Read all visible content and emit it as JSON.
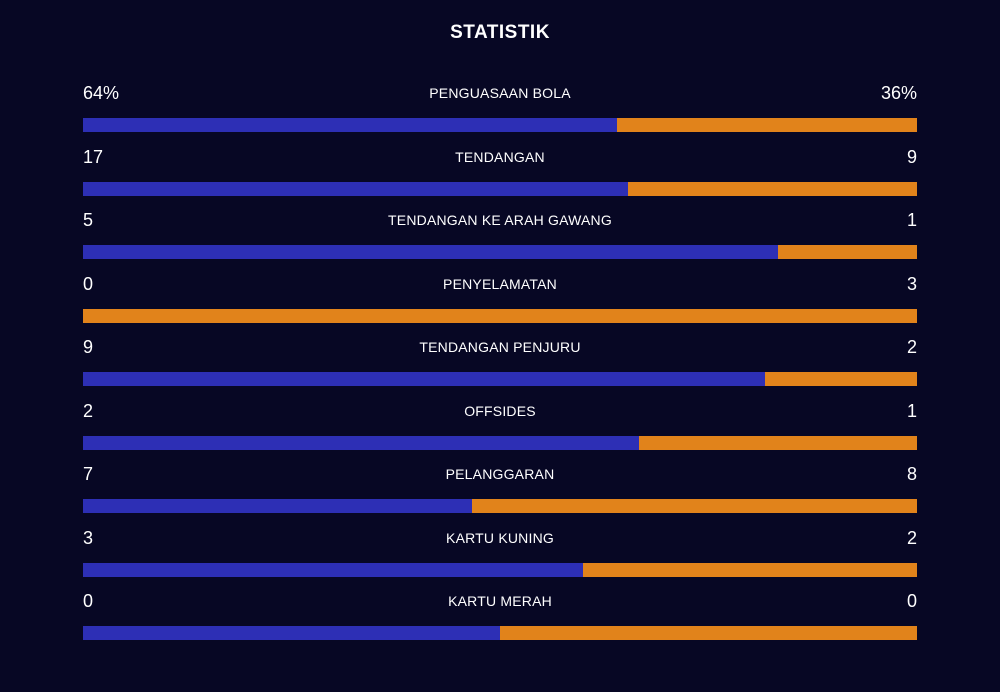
{
  "title": "STATISTIK",
  "colors": {
    "background": "#070724",
    "home": "#2d2fb5",
    "away": "#e1831b"
  },
  "stats": [
    {
      "label": "PENGUASAAN BOLA",
      "home_display": "64%",
      "away_display": "36%",
      "home_share": 0.64
    },
    {
      "label": "TENDANGAN",
      "home_display": "17",
      "away_display": "9",
      "home_share": 0.654
    },
    {
      "label": "TENDANGAN KE ARAH GAWANG",
      "home_display": "5",
      "away_display": "1",
      "home_share": 0.833
    },
    {
      "label": "PENYELAMATAN",
      "home_display": "0",
      "away_display": "3",
      "home_share": 0
    },
    {
      "label": "TENDANGAN PENJURU",
      "home_display": "9",
      "away_display": "2",
      "home_share": 0.818
    },
    {
      "label": "OFFSIDES",
      "home_display": "2",
      "away_display": "1",
      "home_share": 0.667
    },
    {
      "label": "PELANGGARAN",
      "home_display": "7",
      "away_display": "8",
      "home_share": 0.467
    },
    {
      "label": "KARTU KUNING",
      "home_display": "3",
      "away_display": "2",
      "home_share": 0.6
    },
    {
      "label": "KARTU MERAH",
      "home_display": "0",
      "away_display": "0",
      "home_share": 0.5
    }
  ]
}
